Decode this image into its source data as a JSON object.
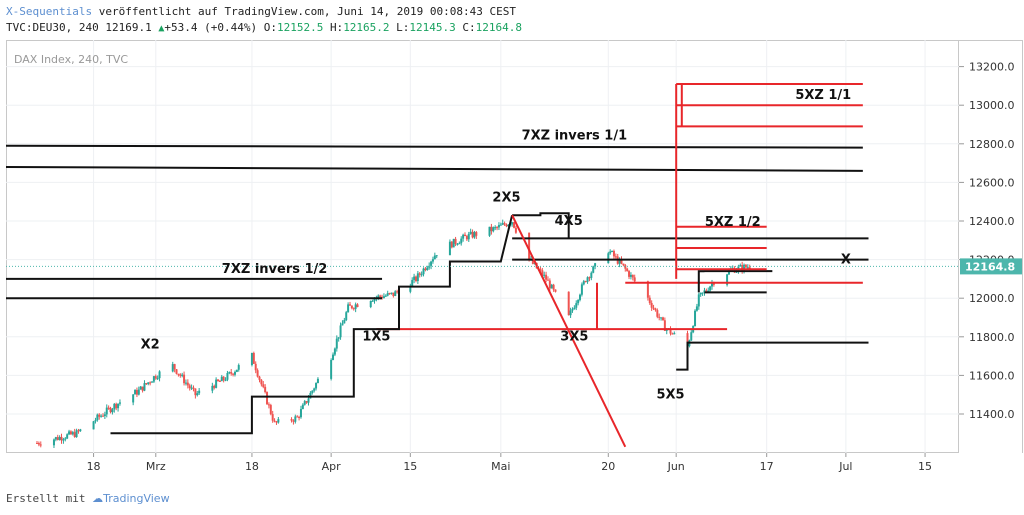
{
  "header": {
    "author": "X-Sequentials",
    "published_text": "veröffentlicht auf TradingView.com, Juni 14, 2019 00:08:43 CEST",
    "symbol": "TVC:DEU30, 240",
    "last": "12169.1",
    "change": "+53.4 (+0.44%)",
    "open_label": "O:",
    "open": "12152.5",
    "high_label": "H:",
    "high": "12165.2",
    "low_label": "L:",
    "low": "12145.3",
    "close_label": "C:",
    "close": "12164.8"
  },
  "pane_label": "DAX Index, 240, TVC",
  "footer": {
    "created_with": "Erstellt mit",
    "brand": "TradingView"
  },
  "colors": {
    "up": "#26a69a",
    "down": "#ef5350",
    "red_line": "#e8262a",
    "black_line": "#111111",
    "price_tag": "#4db6ac",
    "accent": "#5d8fd0"
  },
  "chart_data": {
    "type": "candlestick",
    "title": "DAX Index, 240, TVC",
    "ylim": [
      11200,
      13300
    ],
    "y_ticks": [
      11400,
      11600,
      11800,
      12000,
      12200,
      12400,
      12600,
      12800,
      13000,
      13200
    ],
    "y_tick_labels": [
      "11400.0",
      "11600.0",
      "11800.0",
      "12000.0",
      "12200.0",
      "12400.0",
      "12600.0",
      "12800.0",
      "13000.0",
      "13200.0"
    ],
    "x_ticks": [
      {
        "label": "18",
        "date": "2019-02-18"
      },
      {
        "label": "Mrz",
        "date": "2019-03-01"
      },
      {
        "label": "18",
        "date": "2019-03-18"
      },
      {
        "label": "Apr",
        "date": "2019-04-01"
      },
      {
        "label": "15",
        "date": "2019-04-15"
      },
      {
        "label": "Mai",
        "date": "2019-05-01"
      },
      {
        "label": "20",
        "date": "2019-05-20"
      },
      {
        "label": "Jun",
        "date": "2019-06-01"
      },
      {
        "label": "17",
        "date": "2019-06-17"
      },
      {
        "label": "Jul",
        "date": "2019-07-01"
      },
      {
        "label": "15",
        "date": "2019-07-15"
      }
    ],
    "last_price": 12164.8,
    "last_price_label": "12164.8",
    "price_path": [
      {
        "date": "2019-02-08",
        "price": 11250
      },
      {
        "date": "2019-02-15",
        "price": 11300
      },
      {
        "date": "2019-02-22",
        "price": 11450
      },
      {
        "date": "2019-02-26",
        "price": 11520
      },
      {
        "date": "2019-03-01",
        "price": 11600
      },
      {
        "date": "2019-03-04",
        "price": 11650
      },
      {
        "date": "2019-03-08",
        "price": 11500
      },
      {
        "date": "2019-03-13",
        "price": 11580
      },
      {
        "date": "2019-03-18",
        "price": 11700
      },
      {
        "date": "2019-03-22",
        "price": 11350
      },
      {
        "date": "2019-03-26",
        "price": 11380
      },
      {
        "date": "2019-04-01",
        "price": 11700
      },
      {
        "date": "2019-04-04",
        "price": 11950
      },
      {
        "date": "2019-04-08",
        "price": 12000
      },
      {
        "date": "2019-04-12",
        "price": 12020
      },
      {
        "date": "2019-04-16",
        "price": 12100
      },
      {
        "date": "2019-04-20",
        "price": 12250
      },
      {
        "date": "2019-04-25",
        "price": 12320
      },
      {
        "date": "2019-04-30",
        "price": 12360
      },
      {
        "date": "2019-05-03",
        "price": 12400
      },
      {
        "date": "2019-05-06",
        "price": 12200
      },
      {
        "date": "2019-05-09",
        "price": 12100
      },
      {
        "date": "2019-05-13",
        "price": 11900
      },
      {
        "date": "2019-05-16",
        "price": 12100
      },
      {
        "date": "2019-05-20",
        "price": 12250
      },
      {
        "date": "2019-05-23",
        "price": 12150
      },
      {
        "date": "2019-05-27",
        "price": 12000
      },
      {
        "date": "2019-05-30",
        "price": 11850
      },
      {
        "date": "2019-06-03",
        "price": 11750
      },
      {
        "date": "2019-06-05",
        "price": 12000
      },
      {
        "date": "2019-06-08",
        "price": 12100
      },
      {
        "date": "2019-06-11",
        "price": 12150
      },
      {
        "date": "2019-06-14",
        "price": 12165
      }
    ],
    "levels": [
      {
        "label": "7XZ invers 1/1",
        "color": "black",
        "start": "2019-01-28",
        "end": "2019-07-04",
        "price_start": 12790,
        "price_end": 12780
      },
      {
        "label": "",
        "color": "black",
        "start": "2019-01-28",
        "end": "2019-07-04",
        "price_start": 12680,
        "price_end": 12660
      },
      {
        "label": "7XZ invers 1/2",
        "color": "black",
        "start": "2019-01-28",
        "end": "2019-04-10",
        "price": 12100
      },
      {
        "label": "",
        "color": "black",
        "start": "2019-01-28",
        "end": "2019-04-10",
        "price": 12000
      },
      {
        "label": "",
        "color": "black",
        "start": "2019-05-03",
        "end": "2019-07-05",
        "price": 12310
      },
      {
        "label": "",
        "color": "black",
        "start": "2019-05-03",
        "end": "2019-07-05",
        "price": 12200
      },
      {
        "label": "",
        "color": "black",
        "start": "2019-06-06",
        "end": "2019-06-18",
        "price": 12140
      },
      {
        "label": "",
        "color": "black",
        "start": "2019-06-06",
        "end": "2019-06-17",
        "price": 12030
      },
      {
        "label": "",
        "color": "red",
        "start": "2019-05-23",
        "end": "2019-07-04",
        "price": 12080
      },
      {
        "label": "",
        "color": "red",
        "start": "2019-04-09",
        "end": "2019-06-10",
        "price": 11840
      },
      {
        "label": "",
        "color": "red",
        "start": "2019-06-01",
        "end": "2019-06-17",
        "price": 12150
      },
      {
        "label": "5XZ 1/2",
        "color": "red",
        "start": "2019-06-01",
        "end": "2019-06-17",
        "price": 12260
      },
      {
        "label": "",
        "color": "red",
        "start": "2019-06-01",
        "end": "2019-06-17",
        "price": 12370
      },
      {
        "label": "",
        "color": "red",
        "start": "2019-06-01",
        "end": "2019-07-04",
        "price": 12890
      },
      {
        "label": "5XZ 1/1",
        "color": "red",
        "start": "2019-06-01",
        "end": "2019-07-04",
        "price": 13000
      },
      {
        "label": "",
        "color": "red",
        "start": "2019-06-01",
        "end": "2019-07-04",
        "price": 13110
      }
    ],
    "step_lines": [
      {
        "color": "black",
        "points": [
          {
            "date": "2019-02-21",
            "price": 11300
          },
          {
            "date": "2019-03-18",
            "price": 11300
          },
          {
            "date": "2019-03-18",
            "price": 11490
          },
          {
            "date": "2019-04-05",
            "price": 11490
          },
          {
            "date": "2019-04-05",
            "price": 11840
          },
          {
            "date": "2019-04-13",
            "price": 11840
          },
          {
            "date": "2019-04-13",
            "price": 12060
          },
          {
            "date": "2019-04-22",
            "price": 12060
          },
          {
            "date": "2019-04-22",
            "price": 12190
          },
          {
            "date": "2019-05-01",
            "price": 12190
          },
          {
            "date": "2019-05-03",
            "price": 12430
          }
        ]
      },
      {
        "color": "black",
        "points": [
          {
            "date": "2019-05-03",
            "price": 12430
          },
          {
            "date": "2019-05-08",
            "price": 12430
          },
          {
            "date": "2019-05-08",
            "price": 12440
          },
          {
            "date": "2019-05-13",
            "price": 12440
          },
          {
            "date": "2019-05-13",
            "price": 12310
          }
        ]
      },
      {
        "color": "black",
        "points": [
          {
            "date": "2019-06-01",
            "price": 11630
          },
          {
            "date": "2019-06-03",
            "price": 11630
          },
          {
            "date": "2019-06-03",
            "price": 11770
          },
          {
            "date": "2019-07-05",
            "price": 11770
          }
        ]
      },
      {
        "color": "black",
        "points": [
          {
            "date": "2019-06-05",
            "price": 12030
          },
          {
            "date": "2019-06-05",
            "price": 12140
          },
          {
            "date": "2019-06-06",
            "price": 12140
          }
        ]
      },
      {
        "color": "red",
        "points": [
          {
            "date": "2019-06-01",
            "price": 12100
          },
          {
            "date": "2019-06-01",
            "price": 13110
          }
        ]
      },
      {
        "color": "red",
        "points": [
          {
            "date": "2019-06-02",
            "price": 12890
          },
          {
            "date": "2019-06-02",
            "price": 13110
          }
        ]
      },
      {
        "color": "red",
        "points": [
          {
            "date": "2019-05-18",
            "price": 11840
          },
          {
            "date": "2019-05-18",
            "price": 12080
          }
        ]
      }
    ],
    "trend_lines": [
      {
        "color": "red",
        "start": "2019-05-03",
        "end": "2019-05-23",
        "price_start": 12430,
        "price_end": 11230
      }
    ],
    "annotations": [
      {
        "text": "2X5",
        "date": "2019-05-02",
        "price": 12500
      },
      {
        "text": "4X5",
        "date": "2019-05-13",
        "price": 12380
      },
      {
        "text": "1X5",
        "date": "2019-04-09",
        "price": 11780
      },
      {
        "text": "3X5",
        "date": "2019-05-14",
        "price": 11780
      },
      {
        "text": "5X5",
        "date": "2019-05-31",
        "price": 11480
      },
      {
        "text": "X2",
        "date": "2019-02-28",
        "price": 11740
      },
      {
        "text": "X",
        "date": "2019-07-01",
        "price": 12180
      }
    ]
  }
}
